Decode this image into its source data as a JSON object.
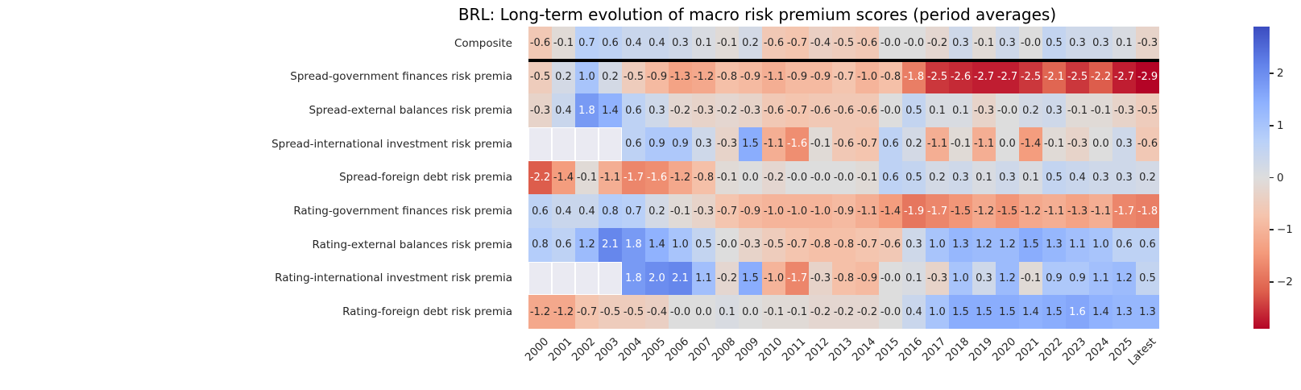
{
  "chart_data": {
    "type": "heatmap",
    "title": "BRL: Long-term evolution of macro risk premium scores (period averages)",
    "columns": [
      "2000",
      "2001",
      "2002",
      "2003",
      "2004",
      "2005",
      "2006",
      "2007",
      "2008",
      "2009",
      "2010",
      "2011",
      "2012",
      "2013",
      "2014",
      "2015",
      "2016",
      "2017",
      "2018",
      "2019",
      "2020",
      "2021",
      "2022",
      "2023",
      "2024",
      "2025",
      "Latest"
    ],
    "rows": [
      {
        "label": "Composite",
        "values": [
          "-0.6",
          "-0.1",
          "0.7",
          "0.6",
          "0.4",
          "0.4",
          "0.3",
          "0.1",
          "-0.1",
          "0.2",
          "-0.6",
          "-0.7",
          "-0.4",
          "-0.5",
          "-0.6",
          "-0.0",
          "-0.0",
          "-0.2",
          "0.3",
          "-0.1",
          "0.3",
          "-0.0",
          "0.5",
          "0.3",
          "0.3",
          "0.1",
          "-0.3"
        ]
      },
      {
        "label": "Spread-government finances risk premia",
        "values": [
          "-0.5",
          "0.2",
          "1.0",
          "0.2",
          "-0.5",
          "-0.9",
          "-1.3",
          "-1.2",
          "-0.8",
          "-0.9",
          "-1.1",
          "-0.9",
          "-0.9",
          "-0.7",
          "-1.0",
          "-0.8",
          "-1.8",
          "-2.5",
          "-2.6",
          "-2.7",
          "-2.7",
          "-2.5",
          "-2.1",
          "-2.5",
          "-2.2",
          "-2.7",
          "-2.9"
        ]
      },
      {
        "label": "Spread-external balances risk premia",
        "values": [
          "-0.3",
          "0.4",
          "1.8",
          "1.4",
          "0.6",
          "0.3",
          "-0.2",
          "-0.3",
          "-0.2",
          "-0.3",
          "-0.6",
          "-0.7",
          "-0.6",
          "-0.6",
          "-0.6",
          "-0.0",
          "0.5",
          "0.1",
          "0.1",
          "-0.3",
          "-0.0",
          "0.2",
          "0.3",
          "-0.1",
          "-0.1",
          "-0.3",
          "-0.5"
        ]
      },
      {
        "label": "Spread-international investment risk premia",
        "values": [
          null,
          null,
          null,
          null,
          "0.6",
          "0.9",
          "0.9",
          "0.3",
          "-0.3",
          "1.5",
          "-1.1",
          "-1.6",
          "-0.1",
          "-0.6",
          "-0.7",
          "0.6",
          "0.2",
          "-1.1",
          "-0.1",
          "-1.1",
          "0.0",
          "-1.4",
          "-0.1",
          "-0.3",
          "0.0",
          "0.3",
          "-0.6"
        ]
      },
      {
        "label": "Spread-foreign debt risk premia",
        "values": [
          "-2.2",
          "-1.4",
          "-0.1",
          "-1.1",
          "-1.7",
          "-1.6",
          "-1.2",
          "-0.8",
          "-0.1",
          "0.0",
          "-0.2",
          "-0.0",
          "-0.0",
          "-0.0",
          "-0.1",
          "0.6",
          "0.5",
          "0.2",
          "0.3",
          "0.1",
          "0.3",
          "0.1",
          "0.5",
          "0.4",
          "0.3",
          "0.3",
          "0.2"
        ]
      },
      {
        "label": "Rating-government finances risk premia",
        "values": [
          "0.6",
          "0.4",
          "0.4",
          "0.8",
          "0.7",
          "0.2",
          "-0.1",
          "-0.3",
          "-0.7",
          "-0.9",
          "-1.0",
          "-1.0",
          "-1.0",
          "-0.9",
          "-1.1",
          "-1.4",
          "-1.9",
          "-1.7",
          "-1.5",
          "-1.2",
          "-1.5",
          "-1.2",
          "-1.1",
          "-1.3",
          "-1.1",
          "-1.7",
          "-1.8"
        ]
      },
      {
        "label": "Rating-external balances risk premia",
        "values": [
          "0.8",
          "0.6",
          "1.2",
          "2.1",
          "1.8",
          "1.4",
          "1.0",
          "0.5",
          "-0.0",
          "-0.3",
          "-0.5",
          "-0.7",
          "-0.8",
          "-0.8",
          "-0.7",
          "-0.6",
          "0.3",
          "1.0",
          "1.3",
          "1.2",
          "1.2",
          "1.5",
          "1.3",
          "1.1",
          "1.0",
          "0.6",
          "0.6"
        ]
      },
      {
        "label": "Rating-international investment risk premia",
        "values": [
          null,
          null,
          null,
          null,
          "1.8",
          "2.0",
          "2.1",
          "1.1",
          "-0.2",
          "1.5",
          "-1.0",
          "-1.7",
          "-0.3",
          "-0.8",
          "-0.9",
          "-0.0",
          "0.1",
          "-0.3",
          "1.0",
          "0.3",
          "1.2",
          "-0.1",
          "0.9",
          "0.9",
          "1.1",
          "1.2",
          "0.5"
        ]
      },
      {
        "label": "Rating-foreign debt risk premia",
        "values": [
          "-1.2",
          "-1.2",
          "-0.7",
          "-0.5",
          "-0.5",
          "-0.4",
          "-0.0",
          "0.0",
          "0.1",
          "0.0",
          "-0.1",
          "-0.1",
          "-0.2",
          "-0.2",
          "-0.2",
          "-0.0",
          "0.4",
          "1.0",
          "1.5",
          "1.5",
          "1.5",
          "1.4",
          "1.5",
          "1.6",
          "1.4",
          "1.3",
          "1.3"
        ]
      }
    ],
    "colormap": {
      "name": "coolwarm_r",
      "vmin": -2.9,
      "vmax": 2.9,
      "anchors_low_to_high": [
        "#b40426",
        "#de604d",
        "#f49a7b",
        "#f5c4ad",
        "#dddddd",
        "#b8d0f9",
        "#8db0fe",
        "#6282ea",
        "#3b4cc0"
      ]
    },
    "colorbar": {
      "ticks": [
        2,
        1,
        0,
        -1,
        -2
      ],
      "position": "right"
    },
    "separator_after_row_index": 0,
    "colors": {
      "annotation_dark": "#262626",
      "annotation_light": "#ffffff",
      "missing_cell": "#eaeaf2",
      "separator": "#000000"
    }
  }
}
